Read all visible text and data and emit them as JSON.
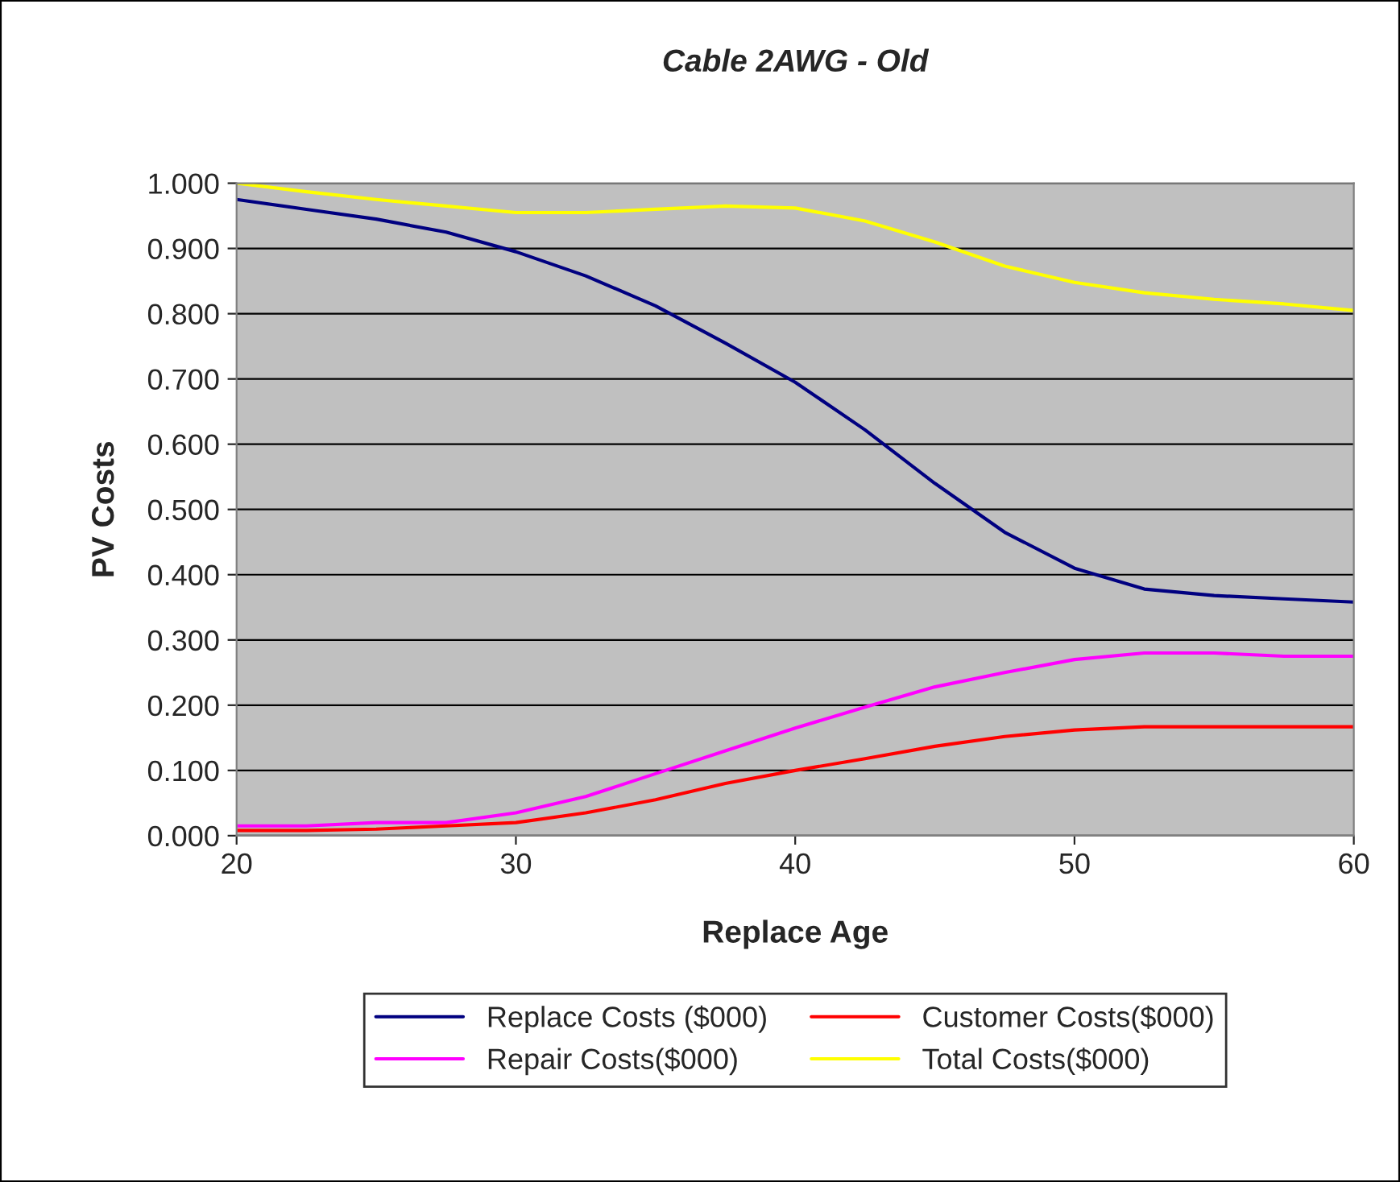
{
  "chart_data": {
    "type": "line",
    "title": "Cable 2AWG - Old",
    "xlabel": "Replace Age",
    "ylabel": "PV Costs",
    "x": [
      20,
      22.5,
      25,
      27.5,
      30,
      32.5,
      35,
      37.5,
      40,
      42.5,
      45,
      47.5,
      50,
      52.5,
      55,
      57.5,
      60
    ],
    "series": [
      {
        "name": "Replace Costs ($000)",
        "color": "#000080",
        "values": [
          0.975,
          0.96,
          0.945,
          0.925,
          0.895,
          0.858,
          0.812,
          0.755,
          0.695,
          0.622,
          0.54,
          0.465,
          0.41,
          0.378,
          0.368,
          0.363,
          0.358
        ]
      },
      {
        "name": "Repair Costs($000)",
        "color": "#ff00ff",
        "values": [
          0.015,
          0.015,
          0.02,
          0.02,
          0.035,
          0.06,
          0.095,
          0.13,
          0.165,
          0.197,
          0.228,
          0.25,
          0.27,
          0.28,
          0.28,
          0.275,
          0.275
        ]
      },
      {
        "name": "Customer Costs($000)",
        "color": "#ff0000",
        "values": [
          0.008,
          0.008,
          0.01,
          0.015,
          0.02,
          0.035,
          0.055,
          0.08,
          0.1,
          0.118,
          0.137,
          0.152,
          0.162,
          0.167,
          0.167,
          0.167,
          0.167
        ]
      },
      {
        "name": "Total Costs($000)",
        "color": "#ffff00",
        "values": [
          1.0,
          0.987,
          0.975,
          0.965,
          0.955,
          0.955,
          0.96,
          0.965,
          0.962,
          0.942,
          0.91,
          0.873,
          0.848,
          0.832,
          0.822,
          0.815,
          0.805
        ]
      }
    ],
    "xlim": [
      20,
      60
    ],
    "xticks": [
      20,
      30,
      40,
      50,
      60
    ],
    "ylim": [
      0,
      1
    ],
    "yticks": [
      {
        "value": 0,
        "label": "0.000"
      },
      {
        "value": 0.1,
        "label": "0.100"
      },
      {
        "value": 0.2,
        "label": "0.200"
      },
      {
        "value": 0.3,
        "label": "0.300"
      },
      {
        "value": 0.4,
        "label": "0.400"
      },
      {
        "value": 0.5,
        "label": "0.500"
      },
      {
        "value": 0.6,
        "label": "0.600"
      },
      {
        "value": 0.7,
        "label": "0.700"
      },
      {
        "value": 0.8,
        "label": "0.800"
      },
      {
        "value": 0.9,
        "label": "0.900"
      },
      {
        "value": 1,
        "label": "1.000"
      }
    ],
    "grid": "y",
    "legend": "bottom",
    "marker": "none",
    "line_style": "solid"
  }
}
